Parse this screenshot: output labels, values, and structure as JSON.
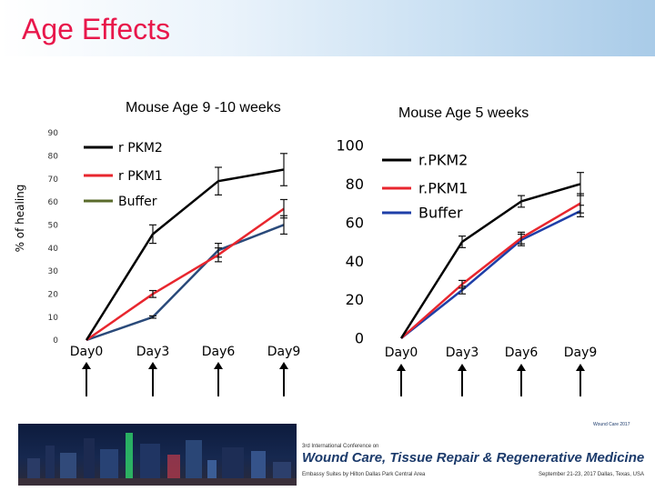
{
  "page": {
    "title": "Age Effects",
    "colors": {
      "title": "#e8174b",
      "header_gradient": "#a9cbe8"
    }
  },
  "footer": {
    "conference_small": "3rd International Conference on",
    "conference_name": "Wound Care, Tissue Repair & Regenerative Medicine",
    "venue": "Embassy Suites by Hilton Dallas Park Central Area",
    "dates": "September 21-23, 2017  Dallas, Texas, USA",
    "tag": "Wound Care 2017"
  },
  "chart_data": [
    {
      "type": "line",
      "title": "Mouse Age 9 -10 weeks",
      "ylabel": "% of healing",
      "xlabel": "",
      "categories": [
        "Day0",
        "Day3",
        "Day6",
        "Day9"
      ],
      "ylim": [
        0,
        90
      ],
      "yticks": [
        0,
        10,
        20,
        30,
        40,
        50,
        60,
        70,
        80,
        90
      ],
      "legend_position": "top-left",
      "grid": false,
      "markers": "upward arrows below each day label",
      "series": [
        {
          "name": "r PKM2",
          "color": "#000000",
          "values": [
            0,
            46,
            69,
            74
          ],
          "error": [
            0,
            4,
            6,
            7
          ]
        },
        {
          "name": "r PKM1",
          "color": "#e8262e",
          "values": [
            0,
            20,
            37,
            57
          ],
          "error": [
            0,
            1.5,
            3,
            4
          ]
        },
        {
          "name": "Buffer",
          "color": "#2a4a7a",
          "legend_color": "#5a6b2b",
          "values": [
            0,
            10,
            39,
            50
          ],
          "error": [
            0,
            0.5,
            3,
            4
          ]
        }
      ]
    },
    {
      "type": "line",
      "title": "Mouse Age 5 weeks",
      "ylabel": "",
      "xlabel": "",
      "categories": [
        "Day0",
        "Day3",
        "Day6",
        "Day9"
      ],
      "ylim": [
        0,
        100
      ],
      "yticks": [
        0,
        20,
        40,
        60,
        80,
        100
      ],
      "legend_position": "top-left",
      "grid": false,
      "markers": "upward arrows below each day label",
      "series": [
        {
          "name": "r.PKM2",
          "color": "#000000",
          "values": [
            0,
            50,
            71,
            80
          ],
          "error": [
            0,
            3,
            3,
            6
          ]
        },
        {
          "name": "r.PKM1",
          "color": "#e8262e",
          "values": [
            0,
            28,
            52,
            70
          ],
          "error": [
            0,
            2,
            3,
            5
          ]
        },
        {
          "name": "Buffer",
          "color": "#1f3fa8",
          "values": [
            0,
            25,
            51,
            66
          ],
          "error": [
            0,
            2,
            3,
            3
          ]
        }
      ]
    }
  ]
}
